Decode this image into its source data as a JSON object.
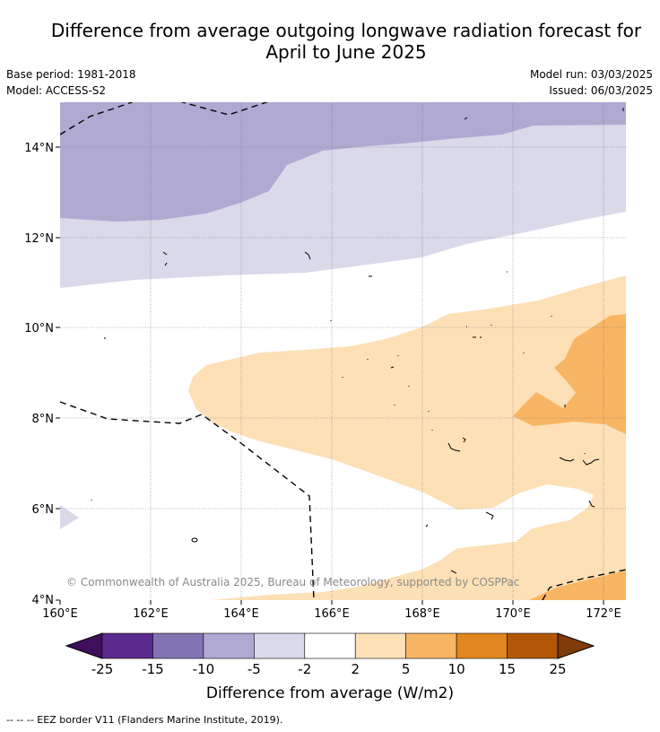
{
  "title": {
    "line1": "Difference from average outgoing longwave radiation forecast for",
    "line2": "April to June 2025"
  },
  "meta": {
    "base_period": "Base period: 1981-2018",
    "model": "Model: ACCESS-S2",
    "model_run": "Model run: 03/03/2025",
    "issued": "Issued: 06/03/2025"
  },
  "map": {
    "lon_labels": [
      "160°E",
      "162°E",
      "164°E",
      "166°E",
      "168°E",
      "170°E",
      "172°E"
    ],
    "lat_labels": [
      "4°N",
      "6°N",
      "8°N",
      "10°N",
      "12°N",
      "14°N"
    ],
    "copyright": "© Commonwealth of Australia 2025, Bureau of Meteorology, supported by COSPPac"
  },
  "legend": {
    "colors": [
      "#3f0f5c",
      "#5b2a8e",
      "#8273b2",
      "#b0a9d2",
      "#d9d9ea",
      "#ffffff",
      "#fde0b6",
      "#f8b563",
      "#e2861f",
      "#b25709",
      "#7f3b08"
    ],
    "ticks": [
      "-25",
      "-15",
      "-10",
      "-5",
      "-2",
      "2",
      "5",
      "10",
      "15",
      "25"
    ],
    "label": "Difference from average (W/m2)"
  },
  "footer": "--  --  -- EEZ border V11 (Flanders Marine Institute, 2019)."
}
